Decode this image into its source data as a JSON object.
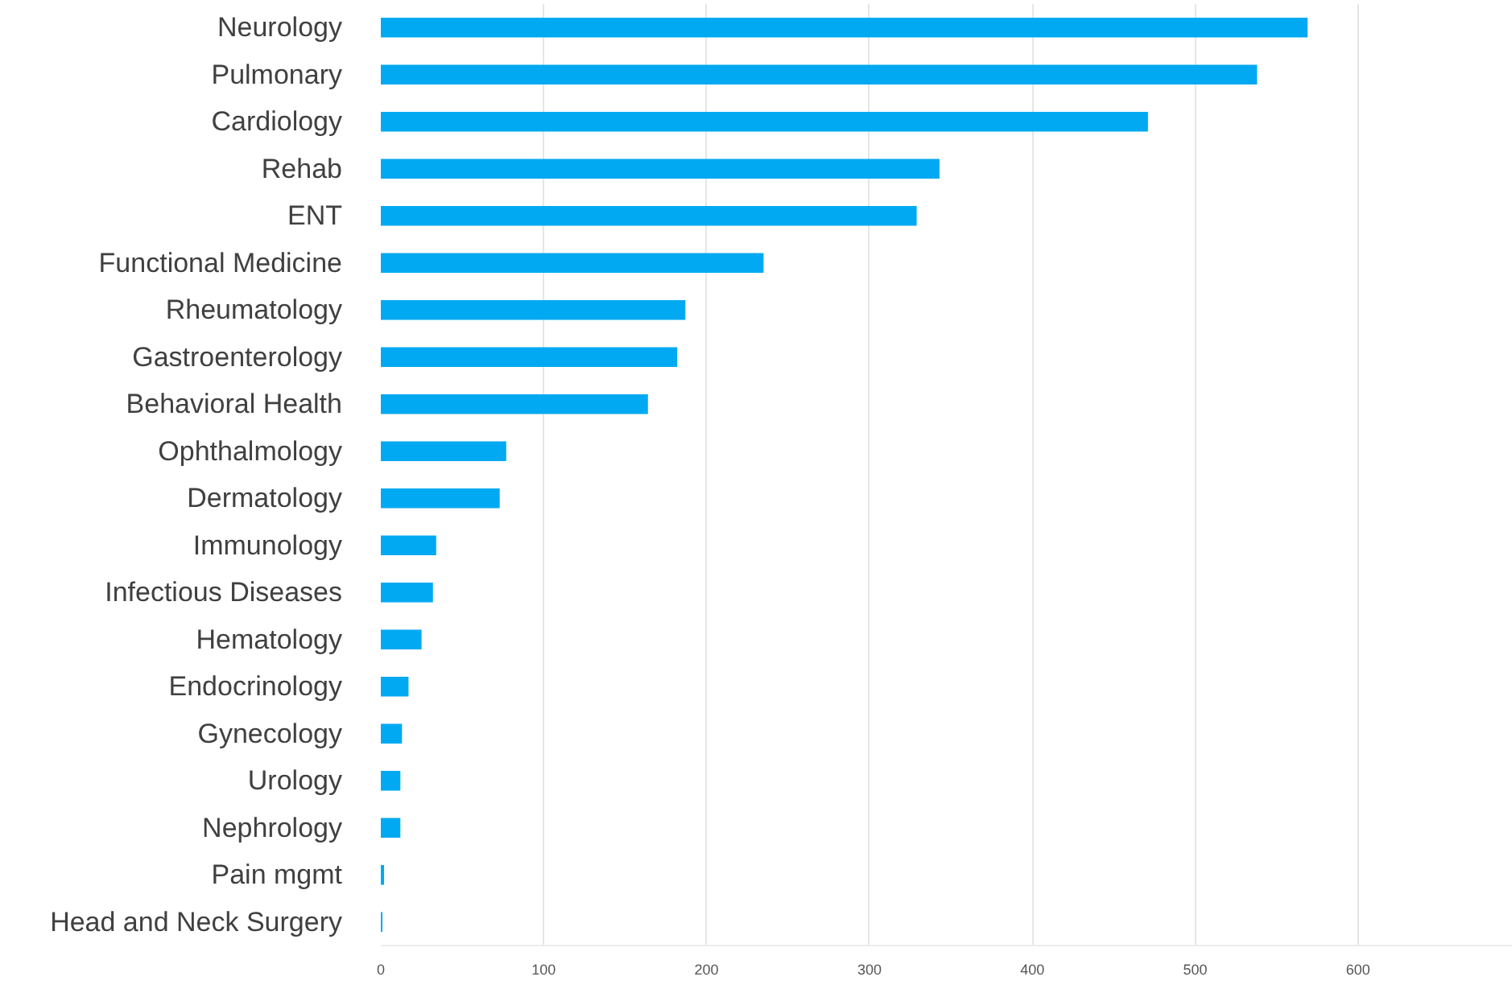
{
  "chart_data": {
    "type": "bar",
    "orientation": "horizontal",
    "categories": [
      "Neurology",
      "Pulmonary",
      "Cardiology",
      "Rehab",
      "ENT",
      "Functional Medicine",
      "Rheumatology",
      "Gastroenterology",
      "Behavioral Health",
      "Ophthalmology",
      "Dermatology",
      "Immunology",
      "Infectious Diseases",
      "Hematology",
      "Endocrinology",
      "Gynecology",
      "Urology",
      "Nephrology",
      "Pain mgmt",
      "Head and Neck Surgery"
    ],
    "values": [
      569,
      538,
      471,
      343,
      329,
      235,
      187,
      182,
      164,
      77,
      73,
      34,
      32,
      25,
      17,
      13,
      12,
      12,
      2,
      1
    ],
    "color": "#00a9f1",
    "xlim": [
      0,
      695
    ],
    "xticks": [
      0,
      100,
      200,
      300,
      400,
      500,
      600
    ],
    "grid": "x"
  }
}
